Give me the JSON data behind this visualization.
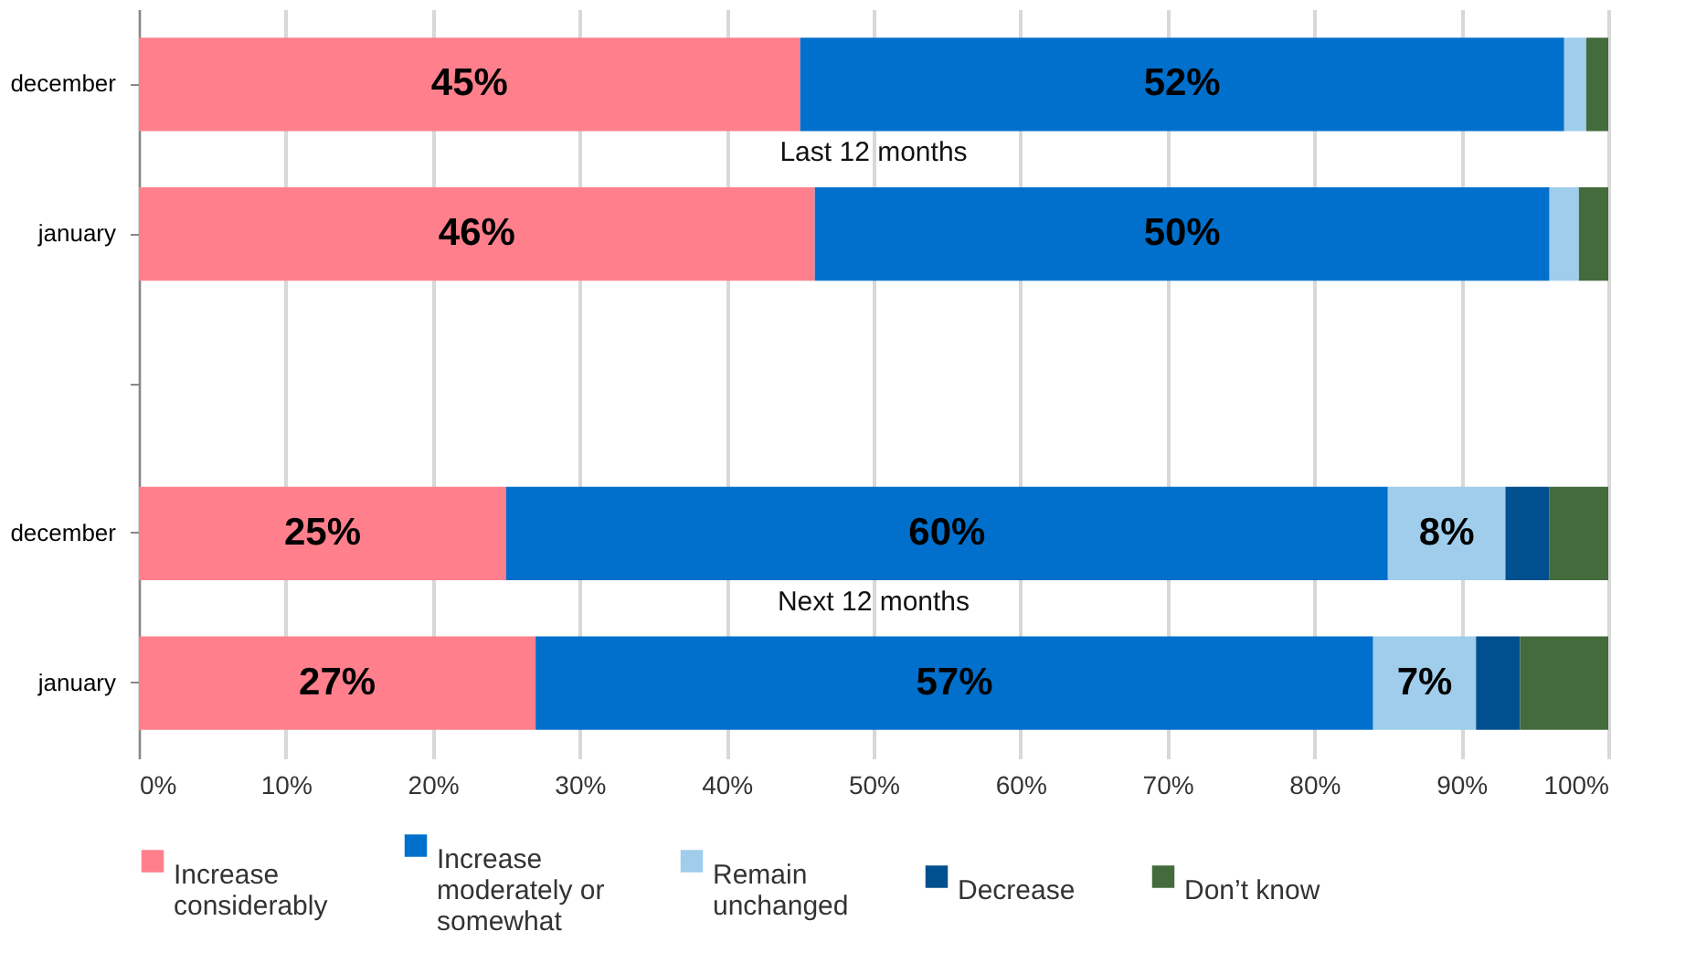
{
  "chart_data": {
    "type": "bar",
    "orientation": "horizontal",
    "stacked": true,
    "categories": [
      "december",
      "january",
      null,
      "december",
      "january"
    ],
    "series": [
      {
        "name": "Increase considerably",
        "color": "#ff808c",
        "values": [
          45,
          46,
          null,
          25,
          27
        ],
        "value_labels": [
          "45%",
          "46%",
          null,
          "25%",
          "27%"
        ]
      },
      {
        "name": "Increase moderately or somewhat",
        "color": "#0070cc",
        "values": [
          52,
          50,
          null,
          60,
          57
        ],
        "value_labels": [
          "52%",
          "50%",
          null,
          "60%",
          "57%"
        ]
      },
      {
        "name": "Remain unchanged",
        "color": "#9fcdeb",
        "values": [
          1.5,
          2,
          null,
          8,
          7
        ],
        "value_labels": [
          null,
          null,
          null,
          "8%",
          "7%"
        ]
      },
      {
        "name": "Decrease",
        "color": "#00508f",
        "values": [
          0,
          0,
          null,
          3,
          3
        ]
      },
      {
        "name": "Don’t know",
        "color": "#436b3c",
        "values": [
          1.5,
          2,
          null,
          4,
          6
        ]
      }
    ],
    "xlim": [
      0,
      100
    ],
    "xticks": [
      {
        "value": 0,
        "label": "0%"
      },
      {
        "value": 10,
        "label": "10%"
      },
      {
        "value": 20,
        "label": "20%"
      },
      {
        "value": 30,
        "label": "30%"
      },
      {
        "value": 40,
        "label": "40%"
      },
      {
        "value": 50,
        "label": "50%"
      },
      {
        "value": 60,
        "label": "60%"
      },
      {
        "value": 70,
        "label": "70%"
      },
      {
        "value": 80,
        "label": "80%"
      },
      {
        "value": 90,
        "label": "90%"
      },
      {
        "value": 100,
        "label": "100%"
      }
    ],
    "annotations": [
      "Last 12 months",
      "Next 12 months"
    ],
    "grid": "x",
    "legend": "bottom"
  }
}
